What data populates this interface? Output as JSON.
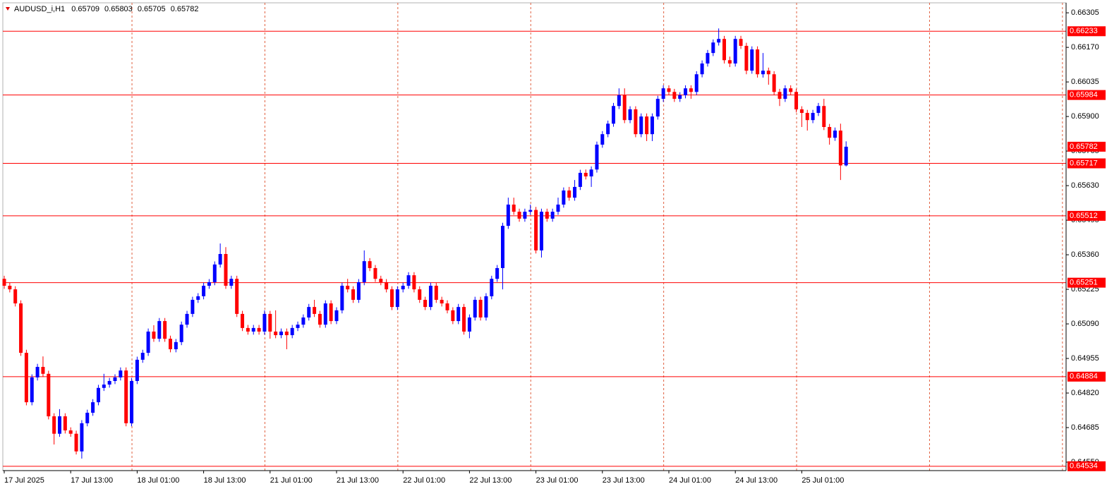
{
  "chart_data": {
    "type": "candlestick",
    "title": "AUDUSD_i,H1",
    "up_color": "#0000ff",
    "down_color": "#ff0000",
    "level_color": "#ff0000",
    "grid": true,
    "ylim": [
      0.64517,
      0.66344
    ],
    "yticks": [
      0.66305,
      {
        "value": 0.6617,
        "label": "0.66170"
      },
      0.66035,
      {
        "value": 0.659,
        "label": "0.65900"
      },
      0.65765,
      {
        "value": 0.6563,
        "label": "0.65630"
      },
      0.65495,
      {
        "value": 0.6536,
        "label": "0.65360"
      },
      0.65225,
      {
        "value": 0.6509,
        "label": "0.65090"
      },
      0.64955,
      {
        "value": 0.6482,
        "label": "0.64820"
      },
      0.64685,
      {
        "value": 0.6455,
        "label": "0.64550"
      }
    ],
    "levels": [
      0.66233,
      0.65984,
      0.65717,
      0.65512,
      0.65251,
      0.64884,
      0.64534
    ],
    "categories": [
      "17 Jul 2025",
      null,
      null,
      null,
      null,
      null,
      null,
      null,
      null,
      null,
      null,
      null,
      "17 Jul 13:00",
      null,
      null,
      null,
      null,
      null,
      null,
      null,
      null,
      null,
      null,
      null,
      "18 Jul 01:00",
      null,
      null,
      null,
      null,
      null,
      null,
      null,
      null,
      null,
      null,
      null,
      "18 Jul 13:00",
      null,
      null,
      null,
      null,
      null,
      null,
      null,
      null,
      null,
      null,
      null,
      "21 Jul 01:00",
      null,
      null,
      null,
      null,
      null,
      null,
      null,
      null,
      null,
      null,
      null,
      "21 Jul 13:00",
      null,
      null,
      null,
      null,
      null,
      null,
      null,
      null,
      null,
      null,
      null,
      "22 Jul 01:00",
      null,
      null,
      null,
      null,
      null,
      null,
      null,
      null,
      null,
      null,
      null,
      "22 Jul 13:00",
      null,
      null,
      null,
      null,
      null,
      null,
      null,
      null,
      null,
      null,
      null,
      "23 Jul 01:00",
      null,
      null,
      null,
      null,
      null,
      null,
      null,
      null,
      null,
      null,
      null,
      "23 Jul 13:00",
      null,
      null,
      null,
      null,
      null,
      null,
      null,
      null,
      null,
      null,
      null,
      "24 Jul 01:00",
      null,
      null,
      null,
      null,
      null,
      null,
      null,
      null,
      null,
      null,
      null,
      "24 Jul 13:00",
      null,
      null,
      null,
      null,
      null,
      null,
      null,
      null,
      null,
      null,
      null,
      "25 Jul 01:00",
      null,
      null,
      null,
      null,
      null,
      null,
      null,
      null
    ],
    "ohlc": [
      [
        0.65266,
        0.65278,
        0.65227,
        0.65239
      ],
      [
        0.65239,
        0.65251,
        0.65213,
        0.65225
      ],
      [
        0.65225,
        0.65237,
        0.65158,
        0.6517
      ],
      [
        0.6517,
        0.65182,
        0.64965,
        0.64977
      ],
      [
        0.64977,
        0.64989,
        0.64772,
        0.64784
      ],
      [
        0.64784,
        0.64893,
        0.64772,
        0.64881
      ],
      [
        0.64881,
        0.64934,
        0.64869,
        0.64922
      ],
      [
        0.64922,
        0.64963,
        0.64883,
        0.64895
      ],
      [
        0.64895,
        0.64907,
        0.64717,
        0.64729
      ],
      [
        0.64729,
        0.64741,
        0.64619,
        0.64661
      ],
      [
        0.64661,
        0.64757,
        0.64649,
        0.64729
      ],
      [
        0.64729,
        0.64741,
        0.64662,
        0.64674
      ],
      [
        0.64674,
        0.64686,
        0.64649,
        0.64661
      ],
      [
        0.64661,
        0.64673,
        0.6458,
        0.64592
      ],
      [
        0.64592,
        0.64714,
        0.64564,
        0.64702
      ],
      [
        0.64702,
        0.64755,
        0.6469,
        0.64743
      ],
      [
        0.64743,
        0.64796,
        0.64731,
        0.64784
      ],
      [
        0.64784,
        0.64852,
        0.64772,
        0.6484
      ],
      [
        0.6484,
        0.64895,
        0.64828,
        0.64853
      ],
      [
        0.64853,
        0.64879,
        0.64841,
        0.64867
      ],
      [
        0.64867,
        0.64893,
        0.64855,
        0.64881
      ],
      [
        0.64881,
        0.6492,
        0.64869,
        0.64908
      ],
      [
        0.64908,
        0.6492,
        0.6469,
        0.64702
      ],
      [
        0.64702,
        0.64879,
        0.6469,
        0.64867
      ],
      [
        0.64867,
        0.64962,
        0.64855,
        0.6495
      ],
      [
        0.6495,
        0.64989,
        0.64938,
        0.64977
      ],
      [
        0.64977,
        0.65072,
        0.64965,
        0.6506
      ],
      [
        0.6506,
        0.65085,
        0.6502,
        0.65032
      ],
      [
        0.65032,
        0.65113,
        0.6502,
        0.65101
      ],
      [
        0.65101,
        0.65113,
        0.6502,
        0.65032
      ],
      [
        0.65032,
        0.65044,
        0.64979,
        0.64991
      ],
      [
        0.64991,
        0.65031,
        0.64979,
        0.65019
      ],
      [
        0.65019,
        0.65099,
        0.65007,
        0.65087
      ],
      [
        0.65087,
        0.65141,
        0.65075,
        0.65129
      ],
      [
        0.65129,
        0.65196,
        0.65117,
        0.65184
      ],
      [
        0.65184,
        0.6521,
        0.65172,
        0.65198
      ],
      [
        0.65198,
        0.65251,
        0.65186,
        0.65239
      ],
      [
        0.65239,
        0.65265,
        0.65227,
        0.65253
      ],
      [
        0.65253,
        0.65334,
        0.65241,
        0.65322
      ],
      [
        0.65322,
        0.65404,
        0.6531,
        0.65363
      ],
      [
        0.65363,
        0.6539,
        0.65227,
        0.65239
      ],
      [
        0.65239,
        0.65278,
        0.65227,
        0.65266
      ],
      [
        0.65266,
        0.65278,
        0.65117,
        0.65129
      ],
      [
        0.65129,
        0.65141,
        0.65062,
        0.65074
      ],
      [
        0.65074,
        0.65086,
        0.65048,
        0.6506
      ],
      [
        0.6506,
        0.65086,
        0.65048,
        0.65074
      ],
      [
        0.65074,
        0.65086,
        0.65048,
        0.6506
      ],
      [
        0.6506,
        0.65143,
        0.65048,
        0.65129
      ],
      [
        0.65129,
        0.65141,
        0.65032,
        0.6506
      ],
      [
        0.6506,
        0.65143,
        0.65034,
        0.65046
      ],
      [
        0.65046,
        0.65072,
        0.65034,
        0.6506
      ],
      [
        0.6506,
        0.65072,
        0.64991,
        0.65046
      ],
      [
        0.65046,
        0.65086,
        0.65034,
        0.65074
      ],
      [
        0.65074,
        0.65099,
        0.65062,
        0.65087
      ],
      [
        0.65087,
        0.65127,
        0.65075,
        0.65115
      ],
      [
        0.65115,
        0.65168,
        0.65103,
        0.65156
      ],
      [
        0.65156,
        0.65184,
        0.65117,
        0.65129
      ],
      [
        0.65129,
        0.65141,
        0.65075,
        0.65087
      ],
      [
        0.65087,
        0.65182,
        0.65075,
        0.6517
      ],
      [
        0.6517,
        0.65182,
        0.65089,
        0.65101
      ],
      [
        0.65101,
        0.65155,
        0.65089,
        0.65143
      ],
      [
        0.65143,
        0.65251,
        0.65131,
        0.65239
      ],
      [
        0.65239,
        0.65266,
        0.65213,
        0.65225
      ],
      [
        0.65225,
        0.65237,
        0.65172,
        0.65184
      ],
      [
        0.65184,
        0.65265,
        0.65172,
        0.65253
      ],
      [
        0.65253,
        0.65377,
        0.65241,
        0.65335
      ],
      [
        0.65335,
        0.65347,
        0.65296,
        0.65308
      ],
      [
        0.65308,
        0.6532,
        0.65254,
        0.65266
      ],
      [
        0.65266,
        0.65278,
        0.65241,
        0.65253
      ],
      [
        0.65253,
        0.65265,
        0.65213,
        0.65225
      ],
      [
        0.65225,
        0.65237,
        0.65144,
        0.65156
      ],
      [
        0.65156,
        0.65237,
        0.65144,
        0.65225
      ],
      [
        0.65225,
        0.65251,
        0.65213,
        0.65239
      ],
      [
        0.65239,
        0.65292,
        0.65227,
        0.6528
      ],
      [
        0.6528,
        0.65292,
        0.65213,
        0.65225
      ],
      [
        0.65225,
        0.65237,
        0.65172,
        0.65184
      ],
      [
        0.65184,
        0.65196,
        0.65144,
        0.65156
      ],
      [
        0.65156,
        0.65251,
        0.65144,
        0.65239
      ],
      [
        0.65239,
        0.65251,
        0.65172,
        0.65184
      ],
      [
        0.65184,
        0.65196,
        0.65158,
        0.6517
      ],
      [
        0.6517,
        0.65182,
        0.65131,
        0.65143
      ],
      [
        0.65143,
        0.65155,
        0.65089,
        0.65101
      ],
      [
        0.65101,
        0.65168,
        0.65089,
        0.65156
      ],
      [
        0.65156,
        0.65168,
        0.65048,
        0.6506
      ],
      [
        0.6506,
        0.65127,
        0.65034,
        0.65115
      ],
      [
        0.65115,
        0.65196,
        0.65103,
        0.65184
      ],
      [
        0.65184,
        0.65196,
        0.65103,
        0.65115
      ],
      [
        0.65115,
        0.6521,
        0.65103,
        0.65198
      ],
      [
        0.65198,
        0.65278,
        0.65186,
        0.65266
      ],
      [
        0.65266,
        0.6532,
        0.65254,
        0.65308
      ],
      [
        0.65308,
        0.65485,
        0.65225,
        0.65473
      ],
      [
        0.65473,
        0.65583,
        0.65461,
        0.65556
      ],
      [
        0.65556,
        0.65583,
        0.65516,
        0.65528
      ],
      [
        0.65528,
        0.6554,
        0.65489,
        0.65501
      ],
      [
        0.65501,
        0.6554,
        0.65489,
        0.65528
      ],
      [
        0.65528,
        0.65556,
        0.65516,
        0.65535
      ],
      [
        0.65535,
        0.65547,
        0.65365,
        0.65377
      ],
      [
        0.65377,
        0.6554,
        0.65349,
        0.65528
      ],
      [
        0.65528,
        0.6554,
        0.65489,
        0.65501
      ],
      [
        0.65501,
        0.6554,
        0.65489,
        0.65528
      ],
      [
        0.65528,
        0.65583,
        0.65516,
        0.65556
      ],
      [
        0.65556,
        0.65623,
        0.65544,
        0.65611
      ],
      [
        0.65611,
        0.65625,
        0.65571,
        0.65583
      ],
      [
        0.65583,
        0.65652,
        0.65571,
        0.65625
      ],
      [
        0.65625,
        0.65692,
        0.65613,
        0.6568
      ],
      [
        0.6568,
        0.65693,
        0.65654,
        0.65666
      ],
      [
        0.65666,
        0.65705,
        0.65625,
        0.65693
      ],
      [
        0.65693,
        0.65802,
        0.65681,
        0.6579
      ],
      [
        0.6579,
        0.65843,
        0.65778,
        0.65831
      ],
      [
        0.65831,
        0.65884,
        0.65819,
        0.65872
      ],
      [
        0.65872,
        0.65953,
        0.6586,
        0.65941
      ],
      [
        0.65941,
        0.6601,
        0.65929,
        0.65983
      ],
      [
        0.65983,
        0.6601,
        0.65874,
        0.65886
      ],
      [
        0.65886,
        0.6594,
        0.65874,
        0.65928
      ],
      [
        0.65928,
        0.6594,
        0.65819,
        0.65831
      ],
      [
        0.65831,
        0.65912,
        0.65819,
        0.659
      ],
      [
        0.659,
        0.65912,
        0.65804,
        0.65831
      ],
      [
        0.65831,
        0.65912,
        0.65804,
        0.659
      ],
      [
        0.659,
        0.65981,
        0.65888,
        0.65969
      ],
      [
        0.65969,
        0.66022,
        0.65957,
        0.6601
      ],
      [
        0.6601,
        0.66022,
        0.65984,
        0.65996
      ],
      [
        0.65996,
        0.66008,
        0.65957,
        0.65969
      ],
      [
        0.65969,
        0.65995,
        0.65957,
        0.65983
      ],
      [
        0.65983,
        0.66022,
        0.65971,
        0.6601
      ],
      [
        0.6601,
        0.66022,
        0.65969,
        0.65996
      ],
      [
        0.65996,
        0.66077,
        0.65984,
        0.66065
      ],
      [
        0.66065,
        0.66119,
        0.66053,
        0.66107
      ],
      [
        0.66107,
        0.6616,
        0.66095,
        0.66148
      ],
      [
        0.66148,
        0.66201,
        0.66136,
        0.66189
      ],
      [
        0.66189,
        0.66244,
        0.66177,
        0.66203
      ],
      [
        0.66203,
        0.66215,
        0.66107,
        0.6612
      ],
      [
        0.6612,
        0.66134,
        0.66093,
        0.66107
      ],
      [
        0.66107,
        0.66215,
        0.66095,
        0.66203
      ],
      [
        0.66203,
        0.66215,
        0.66164,
        0.66176
      ],
      [
        0.66176,
        0.66188,
        0.66065,
        0.66079
      ],
      [
        0.66079,
        0.66174,
        0.66067,
        0.66162
      ],
      [
        0.66162,
        0.66174,
        0.66052,
        0.66065
      ],
      [
        0.66065,
        0.66148,
        0.66052,
        0.66079
      ],
      [
        0.66079,
        0.66091,
        0.66024,
        0.66065
      ],
      [
        0.66065,
        0.66077,
        0.65984,
        0.65996
      ],
      [
        0.65996,
        0.66008,
        0.65941,
        0.65969
      ],
      [
        0.65969,
        0.66022,
        0.65957,
        0.6601
      ],
      [
        0.6601,
        0.66022,
        0.65984,
        0.65996
      ],
      [
        0.65996,
        0.66008,
        0.65916,
        0.65928
      ],
      [
        0.65928,
        0.6594,
        0.65859,
        0.65914
      ],
      [
        0.65914,
        0.65926,
        0.65845,
        0.65886
      ],
      [
        0.65886,
        0.65926,
        0.65874,
        0.65914
      ],
      [
        0.65914,
        0.65953,
        0.65902,
        0.65941
      ],
      [
        0.65941,
        0.65969,
        0.65847,
        0.65859
      ],
      [
        0.65859,
        0.65871,
        0.6579,
        0.65817
      ],
      [
        0.65817,
        0.65857,
        0.65805,
        0.65845
      ],
      [
        0.65845,
        0.65872,
        0.65652,
        0.65709
      ],
      [
        0.65709,
        0.65803,
        0.65705,
        0.65782
      ]
    ]
  }
}
